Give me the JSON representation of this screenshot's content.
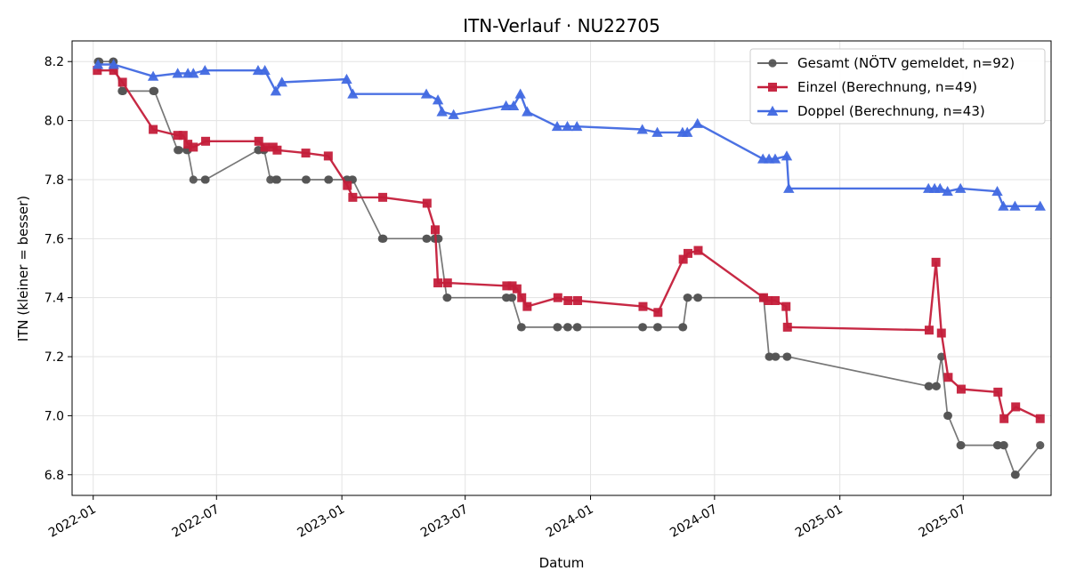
{
  "chart_data": {
    "type": "line",
    "title": "ITN-Verlauf · NU22705",
    "xlabel": "Datum",
    "ylabel": "ITN  (kleiner = besser)",
    "x_ticks": [
      "2022-01",
      "2022-07",
      "2023-01",
      "2023-07",
      "2024-01",
      "2024-07",
      "2025-01",
      "2025-07"
    ],
    "y_ticks": [
      "6.8",
      "7.0",
      "7.2",
      "7.4",
      "7.6",
      "7.8",
      "8.0",
      "8.2"
    ],
    "xlim": [
      "2021-12-01",
      "2025-11-07"
    ],
    "ylim": [
      6.73,
      8.27
    ],
    "grid": true,
    "legend": "top-right",
    "series": [
      {
        "name": "Gesamt (NÖTV gemeldet, n=92)",
        "color": "#555555",
        "marker": "circle",
        "points": [
          [
            "2022-01-08",
            8.2
          ],
          [
            "2022-01-10",
            8.2
          ],
          [
            "2022-01-30",
            8.2
          ],
          [
            "2022-01-31",
            8.2
          ],
          [
            "2022-02-12",
            8.1
          ],
          [
            "2022-02-13",
            8.1
          ],
          [
            "2022-02-14",
            8.1
          ],
          [
            "2022-03-30",
            8.1
          ],
          [
            "2022-03-31",
            8.1
          ],
          [
            "2022-04-01",
            8.1
          ],
          [
            "2022-05-05",
            7.9
          ],
          [
            "2022-05-07",
            7.9
          ],
          [
            "2022-05-18",
            7.9
          ],
          [
            "2022-05-20",
            7.9
          ],
          [
            "2022-05-28",
            7.8
          ],
          [
            "2022-06-14",
            7.8
          ],
          [
            "2022-06-15",
            7.8
          ],
          [
            "2022-08-31",
            7.9
          ],
          [
            "2022-09-01",
            7.9
          ],
          [
            "2022-09-08",
            7.9
          ],
          [
            "2022-09-09",
            7.9
          ],
          [
            "2022-09-18",
            7.8
          ],
          [
            "2022-09-26",
            7.8
          ],
          [
            "2022-09-27",
            7.8
          ],
          [
            "2022-09-28",
            7.8
          ],
          [
            "2022-11-09",
            7.8
          ],
          [
            "2022-11-10",
            7.8
          ],
          [
            "2022-12-12",
            7.8
          ],
          [
            "2022-12-13",
            7.8
          ],
          [
            "2023-01-08",
            7.8
          ],
          [
            "2023-01-09",
            7.8
          ],
          [
            "2023-01-16",
            7.8
          ],
          [
            "2023-01-17",
            7.8
          ],
          [
            "2023-03-01",
            7.6
          ],
          [
            "2023-03-02",
            7.6
          ],
          [
            "2023-03-03",
            7.6
          ],
          [
            "2023-05-05",
            7.6
          ],
          [
            "2023-05-06",
            7.6
          ],
          [
            "2023-05-17",
            7.6
          ],
          [
            "2023-05-18",
            7.6
          ],
          [
            "2023-05-22",
            7.6
          ],
          [
            "2023-05-23",
            7.6
          ],
          [
            "2023-06-04",
            7.4
          ],
          [
            "2023-06-05",
            7.4
          ],
          [
            "2023-08-30",
            7.4
          ],
          [
            "2023-08-31",
            7.4
          ],
          [
            "2023-09-07",
            7.4
          ],
          [
            "2023-09-08",
            7.4
          ],
          [
            "2023-09-21",
            7.3
          ],
          [
            "2023-09-22",
            7.3
          ],
          [
            "2023-11-13",
            7.3
          ],
          [
            "2023-11-14",
            7.3
          ],
          [
            "2023-11-28",
            7.3
          ],
          [
            "2023-11-29",
            7.3
          ],
          [
            "2023-12-12",
            7.3
          ],
          [
            "2023-12-13",
            7.3
          ],
          [
            "2024-03-17",
            7.3
          ],
          [
            "2024-03-18",
            7.3
          ],
          [
            "2024-04-08",
            7.3
          ],
          [
            "2024-04-09",
            7.3
          ],
          [
            "2024-05-15",
            7.3
          ],
          [
            "2024-05-16",
            7.3
          ],
          [
            "2024-05-22",
            7.4
          ],
          [
            "2024-05-23",
            7.4
          ],
          [
            "2024-06-06",
            7.4
          ],
          [
            "2024-06-07",
            7.4
          ],
          [
            "2024-09-10",
            7.4
          ],
          [
            "2024-09-11",
            7.4
          ],
          [
            "2024-09-19",
            7.2
          ],
          [
            "2024-09-20",
            7.2
          ],
          [
            "2024-09-28",
            7.2
          ],
          [
            "2024-09-29",
            7.2
          ],
          [
            "2024-10-15",
            7.2
          ],
          [
            "2024-10-16",
            7.2
          ],
          [
            "2025-05-11",
            7.1
          ],
          [
            "2025-05-12",
            7.1
          ],
          [
            "2025-05-22",
            7.1
          ],
          [
            "2025-05-23",
            7.1
          ],
          [
            "2025-05-30",
            7.2
          ],
          [
            "2025-06-08",
            7.0
          ],
          [
            "2025-06-09",
            7.0
          ],
          [
            "2025-06-27",
            6.9
          ],
          [
            "2025-06-28",
            6.9
          ],
          [
            "2025-08-20",
            6.9
          ],
          [
            "2025-08-21",
            6.9
          ],
          [
            "2025-08-29",
            6.9
          ],
          [
            "2025-08-30",
            6.9
          ],
          [
            "2025-09-15",
            6.8
          ],
          [
            "2025-09-16",
            6.8
          ],
          [
            "2025-10-22",
            6.9
          ]
        ]
      },
      {
        "name": "Einzel (Berechnung, n=49)",
        "color": "#c41e3a",
        "marker": "square",
        "points": [
          [
            "2022-01-07",
            8.17
          ],
          [
            "2022-01-31",
            8.17
          ],
          [
            "2022-02-13",
            8.13
          ],
          [
            "2022-03-30",
            7.97
          ],
          [
            "2022-05-05",
            7.95
          ],
          [
            "2022-05-13",
            7.95
          ],
          [
            "2022-05-20",
            7.92
          ],
          [
            "2022-05-28",
            7.91
          ],
          [
            "2022-06-15",
            7.93
          ],
          [
            "2022-09-01",
            7.93
          ],
          [
            "2022-09-10",
            7.91
          ],
          [
            "2022-09-22",
            7.91
          ],
          [
            "2022-09-28",
            7.9
          ],
          [
            "2022-11-09",
            7.89
          ],
          [
            "2022-12-12",
            7.88
          ],
          [
            "2023-01-09",
            7.78
          ],
          [
            "2023-01-17",
            7.74
          ],
          [
            "2023-03-02",
            7.74
          ],
          [
            "2023-05-06",
            7.72
          ],
          [
            "2023-05-18",
            7.63
          ],
          [
            "2023-05-22",
            7.45
          ],
          [
            "2023-06-05",
            7.45
          ],
          [
            "2023-08-31",
            7.44
          ],
          [
            "2023-09-08",
            7.44
          ],
          [
            "2023-09-15",
            7.43
          ],
          [
            "2023-09-22",
            7.4
          ],
          [
            "2023-09-30",
            7.37
          ],
          [
            "2023-11-14",
            7.4
          ],
          [
            "2023-11-29",
            7.39
          ],
          [
            "2023-12-13",
            7.39
          ],
          [
            "2024-03-18",
            7.37
          ],
          [
            "2024-04-09",
            7.35
          ],
          [
            "2024-05-16",
            7.53
          ],
          [
            "2024-05-23",
            7.55
          ],
          [
            "2024-06-07",
            7.56
          ],
          [
            "2024-09-11",
            7.4
          ],
          [
            "2024-09-18",
            7.39
          ],
          [
            "2024-09-28",
            7.39
          ],
          [
            "2024-10-14",
            7.37
          ],
          [
            "2024-10-16",
            7.3
          ],
          [
            "2025-05-12",
            7.29
          ],
          [
            "2025-05-22",
            7.52
          ],
          [
            "2025-05-30",
            7.28
          ],
          [
            "2025-06-09",
            7.13
          ],
          [
            "2025-06-28",
            7.09
          ],
          [
            "2025-08-21",
            7.08
          ],
          [
            "2025-08-30",
            6.99
          ],
          [
            "2025-09-16",
            7.03
          ],
          [
            "2025-10-22",
            6.99
          ]
        ]
      },
      {
        "name": "Doppel (Berechnung, n=43)",
        "color": "#4169e1",
        "marker": "triangle",
        "points": [
          [
            "2022-01-08",
            8.19
          ],
          [
            "2022-01-31",
            8.19
          ],
          [
            "2022-03-30",
            8.15
          ],
          [
            "2022-05-05",
            8.16
          ],
          [
            "2022-05-20",
            8.16
          ],
          [
            "2022-05-28",
            8.16
          ],
          [
            "2022-06-14",
            8.17
          ],
          [
            "2022-08-31",
            8.17
          ],
          [
            "2022-09-10",
            8.17
          ],
          [
            "2022-09-26",
            8.1
          ],
          [
            "2022-10-05",
            8.13
          ],
          [
            "2023-01-08",
            8.14
          ],
          [
            "2023-01-17",
            8.09
          ],
          [
            "2023-05-05",
            8.09
          ],
          [
            "2023-05-22",
            8.07
          ],
          [
            "2023-05-28",
            8.03
          ],
          [
            "2023-06-14",
            8.02
          ],
          [
            "2023-08-30",
            8.05
          ],
          [
            "2023-09-10",
            8.05
          ],
          [
            "2023-09-20",
            8.09
          ],
          [
            "2023-09-30",
            8.03
          ],
          [
            "2023-11-13",
            7.98
          ],
          [
            "2023-11-28",
            7.98
          ],
          [
            "2023-12-12",
            7.98
          ],
          [
            "2024-03-17",
            7.97
          ],
          [
            "2024-04-08",
            7.96
          ],
          [
            "2024-05-15",
            7.96
          ],
          [
            "2024-05-22",
            7.96
          ],
          [
            "2024-06-06",
            7.99
          ],
          [
            "2024-09-10",
            7.87
          ],
          [
            "2024-09-19",
            7.87
          ],
          [
            "2024-09-28",
            7.87
          ],
          [
            "2024-10-15",
            7.88
          ],
          [
            "2024-10-18",
            7.77
          ],
          [
            "2025-05-11",
            7.77
          ],
          [
            "2025-05-20",
            7.77
          ],
          [
            "2025-05-28",
            7.77
          ],
          [
            "2025-06-08",
            7.76
          ],
          [
            "2025-06-27",
            7.77
          ],
          [
            "2025-08-20",
            7.76
          ],
          [
            "2025-08-29",
            7.71
          ],
          [
            "2025-09-15",
            7.71
          ],
          [
            "2025-10-22",
            7.71
          ]
        ]
      }
    ]
  }
}
